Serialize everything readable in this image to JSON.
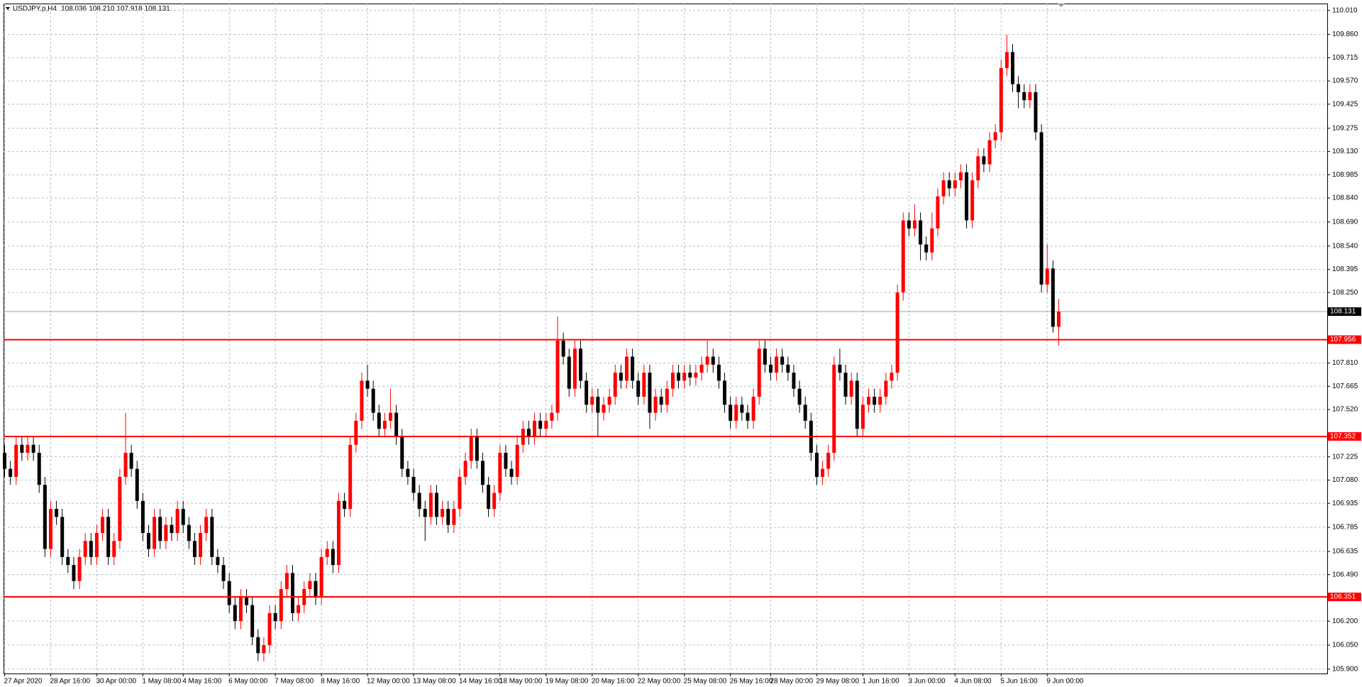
{
  "chart_data": {
    "type": "candlestick",
    "title": "USDJPY.p,H4",
    "ohlc_labels": [
      "108.036",
      "108.210",
      "107.918",
      "108.131"
    ],
    "up_color": "#ff0000",
    "down_color": "#000000",
    "level_color": "#ff0000",
    "grid": true,
    "ylim": [
      105.873,
      110.053
    ],
    "yticks": [
      {
        "value": 110.01,
        "label": "110.010"
      },
      {
        "value": 109.86,
        "label": "109.860"
      },
      109.715,
      {
        "value": 109.57,
        "label": "109.570"
      },
      109.425,
      109.275,
      {
        "value": 109.13,
        "label": "109.130"
      },
      108.985,
      {
        "value": 108.84,
        "label": "108.840"
      },
      {
        "value": 108.69,
        "label": "108.690"
      },
      {
        "value": 108.54,
        "label": "108.540"
      },
      108.395,
      {
        "value": 108.25,
        "label": "108.250"
      },
      {
        "value": 107.81,
        "label": "107.810"
      },
      107.665,
      {
        "value": 107.52,
        "label": "107.520"
      },
      107.225,
      {
        "value": 107.08,
        "label": "107.080"
      },
      106.935,
      106.785,
      106.635,
      {
        "value": 106.49,
        "label": "106.490"
      },
      {
        "value": 106.2,
        "label": "106.200"
      },
      {
        "value": 106.05,
        "label": "106.050"
      },
      {
        "value": 105.9,
        "label": "105.900"
      }
    ],
    "levels": [
      107.956,
      107.352,
      106.351
    ],
    "current_price": 108.131,
    "categories": [
      "27 Apr 2020",
      null,
      null,
      null,
      null,
      null,
      null,
      null,
      "28 Apr 16:00",
      null,
      null,
      null,
      null,
      null,
      null,
      null,
      "30 Apr 00:00",
      null,
      null,
      null,
      null,
      null,
      null,
      null,
      "1 May 08:00",
      null,
      null,
      null,
      null,
      null,
      null,
      "4 May 16:00",
      null,
      null,
      null,
      null,
      null,
      null,
      null,
      "6 May 00:00",
      null,
      null,
      null,
      null,
      null,
      null,
      null,
      "7 May 08:00",
      null,
      null,
      null,
      null,
      null,
      null,
      null,
      "8 May 16:00",
      null,
      null,
      null,
      null,
      null,
      null,
      null,
      "12 May 00:00",
      null,
      null,
      null,
      null,
      null,
      null,
      null,
      "13 May 08:00",
      null,
      null,
      null,
      null,
      null,
      null,
      null,
      "14 May 16:00",
      null,
      null,
      null,
      null,
      null,
      null,
      "18 May 00:00",
      null,
      null,
      null,
      null,
      null,
      null,
      null,
      "19 May 08:00",
      null,
      null,
      null,
      null,
      null,
      null,
      null,
      "20 May 16:00",
      null,
      null,
      null,
      null,
      null,
      null,
      null,
      "22 May 00:00",
      null,
      null,
      null,
      null,
      null,
      null,
      null,
      "25 May 08:00",
      null,
      null,
      null,
      null,
      null,
      null,
      null,
      "26 May 16:00",
      null,
      null,
      null,
      null,
      null,
      null,
      "28 May 00:00",
      null,
      null,
      null,
      null,
      null,
      null,
      null,
      "29 May 08:00",
      null,
      null,
      null,
      null,
      null,
      null,
      null,
      "1 Jun 16:00",
      null,
      null,
      null,
      null,
      null,
      null,
      null,
      "3 Jun 00:00",
      null,
      null,
      null,
      null,
      null,
      null,
      null,
      "4 Jun 08:00",
      null,
      null,
      null,
      null,
      null,
      null,
      null,
      "5 Jun 16:00",
      null,
      null,
      null,
      null,
      null,
      null,
      null,
      "9 Jun 00:00",
      null,
      null
    ],
    "open": [
      107.25,
      107.15,
      107.1,
      107.3,
      107.25,
      107.3,
      107.25,
      107.05,
      106.65,
      106.9,
      106.85,
      106.6,
      106.55,
      106.45,
      106.6,
      106.7,
      106.6,
      106.75,
      106.85,
      106.6,
      106.7,
      107.1,
      107.25,
      107.15,
      106.95,
      106.75,
      106.65,
      106.85,
      106.7,
      106.8,
      106.75,
      106.9,
      106.8,
      106.7,
      106.6,
      106.75,
      106.85,
      106.6,
      106.55,
      106.45,
      106.3,
      106.2,
      106.35,
      106.3,
      106.1,
      106.0,
      106.05,
      106.25,
      106.2,
      106.4,
      106.5,
      106.25,
      106.3,
      106.4,
      106.45,
      106.35,
      106.6,
      106.65,
      106.55,
      106.95,
      106.9,
      107.3,
      107.45,
      107.7,
      107.65,
      107.5,
      107.4,
      107.45,
      107.5,
      107.35,
      107.15,
      107.1,
      107.0,
      106.9,
      106.85,
      107.0,
      106.85,
      106.9,
      106.8,
      106.9,
      107.1,
      107.2,
      107.35,
      107.2,
      107.05,
      106.9,
      107.0,
      107.25,
      107.15,
      107.1,
      107.3,
      107.4,
      107.35,
      107.45,
      107.4,
      107.45,
      107.5,
      107.95,
      107.85,
      107.65,
      107.9,
      107.7,
      107.55,
      107.6,
      107.5,
      107.55,
      107.6,
      107.75,
      107.7,
      107.85,
      107.7,
      107.6,
      107.75,
      107.5,
      107.6,
      107.55,
      107.65,
      107.75,
      107.7,
      107.75,
      107.72,
      107.75,
      107.8,
      107.85,
      107.8,
      107.7,
      107.55,
      107.45,
      107.55,
      107.5,
      107.45,
      107.6,
      107.9,
      107.8,
      107.75,
      107.85,
      107.8,
      107.75,
      107.65,
      107.55,
      107.45,
      107.25,
      107.1,
      107.15,
      107.25,
      107.8,
      107.75,
      107.6,
      107.7,
      107.4,
      107.55,
      107.6,
      107.55,
      107.6,
      107.7,
      107.75,
      108.25,
      108.7,
      108.65,
      108.7,
      108.55,
      108.5,
      108.65,
      108.85,
      108.95,
      108.9,
      108.95,
      109.0,
      108.7,
      108.95,
      109.1,
      109.05,
      109.2,
      109.25,
      109.65,
      109.75,
      109.55,
      109.5,
      109.45,
      109.5,
      109.25,
      108.3,
      108.4,
      108.036
    ],
    "high": [
      107.3,
      107.2,
      107.35,
      107.35,
      107.35,
      107.35,
      107.3,
      107.1,
      106.95,
      106.95,
      106.9,
      106.65,
      106.6,
      106.65,
      106.75,
      106.75,
      106.8,
      106.9,
      106.9,
      106.75,
      107.15,
      107.5,
      107.3,
      107.2,
      107.0,
      106.8,
      106.9,
      106.9,
      106.85,
      106.85,
      106.95,
      106.95,
      106.85,
      106.75,
      106.8,
      106.9,
      106.9,
      106.65,
      106.6,
      106.5,
      106.35,
      106.4,
      106.4,
      106.35,
      106.15,
      106.1,
      106.3,
      106.3,
      106.45,
      106.55,
      106.55,
      106.35,
      106.45,
      106.5,
      106.5,
      106.65,
      106.7,
      106.7,
      107.0,
      107.0,
      107.35,
      107.5,
      107.75,
      107.8,
      107.7,
      107.55,
      107.5,
      107.65,
      107.55,
      107.4,
      107.2,
      107.15,
      107.05,
      106.95,
      107.05,
      107.05,
      106.95,
      106.95,
      106.95,
      107.15,
      107.25,
      107.4,
      107.4,
      107.25,
      107.1,
      107.05,
      107.3,
      107.3,
      107.2,
      107.35,
      107.45,
      107.45,
      107.5,
      107.5,
      107.5,
      107.55,
      108.1,
      108.0,
      107.9,
      107.95,
      107.95,
      107.75,
      107.65,
      107.65,
      107.6,
      107.65,
      107.8,
      107.8,
      107.9,
      107.9,
      107.75,
      107.8,
      107.8,
      107.65,
      107.65,
      107.7,
      107.8,
      107.8,
      107.8,
      107.8,
      107.8,
      107.85,
      107.95,
      107.9,
      107.85,
      107.75,
      107.6,
      107.6,
      107.6,
      107.55,
      107.65,
      107.95,
      107.95,
      107.85,
      107.9,
      107.9,
      107.85,
      107.8,
      107.7,
      107.6,
      107.5,
      107.3,
      107.2,
      107.3,
      107.85,
      107.9,
      107.8,
      107.75,
      107.75,
      107.6,
      107.65,
      107.65,
      107.65,
      107.75,
      107.8,
      108.3,
      108.75,
      108.75,
      108.8,
      108.75,
      108.6,
      108.75,
      108.9,
      109.0,
      109.0,
      109.0,
      109.05,
      109.05,
      109.0,
      109.15,
      109.15,
      109.25,
      109.3,
      109.7,
      109.86,
      109.8,
      109.6,
      109.55,
      109.55,
      109.55,
      109.3,
      108.55,
      108.45,
      108.21
    ],
    "low": [
      107.1,
      107.05,
      107.05,
      107.2,
      107.2,
      107.2,
      107.0,
      106.6,
      106.6,
      106.8,
      106.55,
      106.5,
      106.4,
      106.4,
      106.55,
      106.55,
      106.55,
      106.7,
      106.55,
      106.55,
      106.65,
      107.05,
      107.1,
      106.9,
      106.7,
      106.6,
      106.6,
      106.65,
      106.65,
      106.7,
      106.7,
      106.75,
      106.65,
      106.55,
      106.55,
      106.7,
      106.55,
      106.5,
      106.4,
      106.25,
      106.15,
      106.15,
      106.25,
      106.05,
      105.95,
      105.95,
      106.0,
      106.15,
      106.15,
      106.35,
      106.2,
      106.2,
      106.25,
      106.35,
      106.3,
      106.3,
      106.55,
      106.5,
      106.5,
      106.85,
      106.85,
      107.25,
      107.4,
      107.6,
      107.45,
      107.35,
      107.35,
      107.4,
      107.3,
      107.1,
      107.05,
      106.95,
      106.85,
      106.7,
      106.8,
      106.8,
      106.8,
      106.75,
      106.75,
      106.85,
      107.05,
      107.15,
      107.15,
      107.0,
      106.85,
      106.85,
      106.95,
      107.1,
      107.05,
      107.05,
      107.25,
      107.3,
      107.3,
      107.35,
      107.35,
      107.4,
      107.45,
      107.8,
      107.6,
      107.6,
      107.65,
      107.5,
      107.5,
      107.35,
      107.45,
      107.5,
      107.55,
      107.65,
      107.65,
      107.65,
      107.55,
      107.55,
      107.4,
      107.45,
      107.5,
      107.5,
      107.6,
      107.65,
      107.65,
      107.67,
      107.67,
      107.7,
      107.75,
      107.75,
      107.65,
      107.5,
      107.4,
      107.4,
      107.45,
      107.4,
      107.4,
      107.55,
      107.75,
      107.7,
      107.7,
      107.75,
      107.7,
      107.6,
      107.5,
      107.4,
      107.2,
      107.05,
      107.05,
      107.1,
      107.2,
      107.7,
      107.55,
      107.55,
      107.35,
      107.35,
      107.5,
      107.5,
      107.5,
      107.55,
      107.65,
      107.7,
      108.2,
      108.6,
      108.6,
      108.45,
      108.45,
      108.45,
      108.6,
      108.8,
      108.85,
      108.85,
      108.9,
      108.65,
      108.65,
      108.9,
      109.0,
      109.0,
      109.15,
      109.2,
      109.6,
      109.5,
      109.4,
      109.4,
      109.4,
      109.2,
      108.25,
      108.25,
      108.0,
      107.918
    ],
    "close": [
      107.15,
      107.1,
      107.3,
      107.25,
      107.3,
      107.25,
      107.05,
      106.65,
      106.9,
      106.85,
      106.6,
      106.55,
      106.45,
      106.6,
      106.7,
      106.6,
      106.75,
      106.85,
      106.6,
      106.7,
      107.1,
      107.25,
      107.15,
      106.95,
      106.75,
      106.65,
      106.85,
      106.7,
      106.8,
      106.75,
      106.9,
      106.8,
      106.7,
      106.6,
      106.75,
      106.85,
      106.6,
      106.55,
      106.45,
      106.3,
      106.2,
      106.35,
      106.3,
      106.1,
      106.0,
      106.05,
      106.25,
      106.2,
      106.4,
      106.5,
      106.25,
      106.3,
      106.4,
      106.45,
      106.35,
      106.6,
      106.65,
      106.55,
      106.95,
      106.9,
      107.3,
      107.45,
      107.7,
      107.65,
      107.5,
      107.4,
      107.45,
      107.5,
      107.35,
      107.15,
      107.1,
      107.0,
      106.9,
      106.85,
      107.0,
      106.85,
      106.9,
      106.8,
      106.9,
      107.1,
      107.2,
      107.35,
      107.2,
      107.05,
      106.9,
      107.0,
      107.25,
      107.15,
      107.1,
      107.3,
      107.4,
      107.35,
      107.45,
      107.4,
      107.45,
      107.5,
      107.95,
      107.85,
      107.65,
      107.9,
      107.7,
      107.55,
      107.6,
      107.5,
      107.55,
      107.6,
      107.75,
      107.7,
      107.85,
      107.7,
      107.6,
      107.75,
      107.5,
      107.6,
      107.55,
      107.65,
      107.75,
      107.7,
      107.75,
      107.72,
      107.75,
      107.8,
      107.85,
      107.8,
      107.7,
      107.55,
      107.45,
      107.55,
      107.5,
      107.45,
      107.6,
      107.9,
      107.8,
      107.75,
      107.85,
      107.8,
      107.75,
      107.65,
      107.55,
      107.45,
      107.25,
      107.1,
      107.15,
      107.25,
      107.8,
      107.75,
      107.6,
      107.7,
      107.4,
      107.55,
      107.6,
      107.55,
      107.6,
      107.7,
      107.75,
      108.25,
      108.7,
      108.65,
      108.7,
      108.55,
      108.5,
      108.65,
      108.85,
      108.95,
      108.9,
      108.95,
      109.0,
      108.7,
      108.95,
      109.1,
      109.05,
      109.2,
      109.25,
      109.65,
      109.75,
      109.55,
      109.5,
      109.45,
      109.5,
      109.25,
      108.3,
      108.4,
      108.036,
      108.131
    ]
  }
}
